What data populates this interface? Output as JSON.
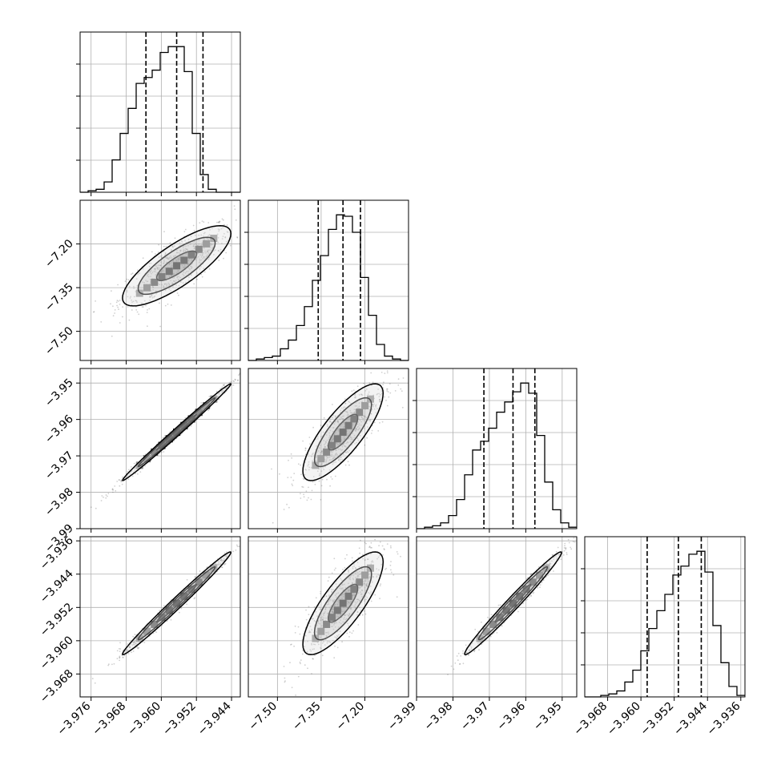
{
  "chart_data": {
    "type": "corner",
    "title": "",
    "grid": true,
    "parameters": [
      {
        "name": "",
        "range": [
          -3.9785,
          -3.942
        ],
        "ticks": [
          -3.976,
          -3.968,
          -3.96,
          -3.952,
          -3.944
        ],
        "tick_labels": [
          "−3.976",
          "−3.968",
          "−3.960",
          "−3.952",
          "−3.944"
        ]
      },
      {
        "name": "",
        "range": [
          -7.6,
          -7.05
        ],
        "ticks": [
          -7.5,
          -7.35,
          -7.2
        ],
        "tick_labels": [
          "−7.50",
          "−7.35",
          "−7.20"
        ]
      },
      {
        "name": "",
        "range": [
          -3.99,
          -3.946
        ],
        "ticks": [
          -3.99,
          -3.98,
          -3.97,
          -3.96,
          -3.95
        ],
        "tick_labels": [
          "−3.99",
          "−3.98",
          "−3.97",
          "−3.96",
          "−3.95"
        ]
      },
      {
        "name": "",
        "range": [
          -3.9735,
          -3.935
        ],
        "ticks": [
          -3.968,
          -3.96,
          -3.952,
          -3.944,
          -3.936
        ],
        "tick_labels": [
          "−3.968",
          "−3.960",
          "−3.952",
          "−3.944",
          "−3.936"
        ]
      }
    ],
    "quantiles": [
      [
        -3.9635,
        -3.9565,
        -3.9505
      ],
      [
        -7.36,
        -7.275,
        -7.215
      ],
      [
        -3.9715,
        -3.9635,
        -3.9575
      ],
      [
        -3.9585,
        -3.951,
        -3.9455
      ]
    ],
    "histograms": [
      {
        "param": 0,
        "bins": 20,
        "counts": [
          0,
          1,
          2,
          7,
          22,
          40,
          57,
          74,
          78,
          83,
          95,
          99,
          99,
          82,
          40,
          12,
          2,
          0,
          0,
          0
        ]
      },
      {
        "param": 1,
        "bins": 20,
        "counts": [
          0,
          1,
          2,
          3,
          8,
          14,
          24,
          37,
          55,
          72,
          90,
          100,
          99,
          88,
          57,
          31,
          11,
          3,
          1,
          0
        ]
      },
      {
        "param": 2,
        "bins": 20,
        "counts": [
          0,
          1,
          2,
          4,
          9,
          20,
          37,
          54,
          60,
          69,
          80,
          87,
          94,
          100,
          93,
          64,
          32,
          13,
          4,
          1
        ]
      },
      {
        "param": 3,
        "bins": 20,
        "counts": [
          0,
          0,
          1,
          2,
          4,
          10,
          18,
          31,
          46,
          58,
          69,
          82,
          88,
          96,
          98,
          84,
          48,
          23,
          7,
          1
        ]
      }
    ],
    "pairs": [
      {
        "x": 0,
        "y": 1,
        "corr": 0.8
      },
      {
        "x": 0,
        "y": 2,
        "corr": 0.995
      },
      {
        "x": 1,
        "y": 2,
        "corr": 0.8
      },
      {
        "x": 0,
        "y": 3,
        "corr": 0.99
      },
      {
        "x": 1,
        "y": 3,
        "corr": 0.8
      },
      {
        "x": 2,
        "y": 3,
        "corr": 0.985
      }
    ]
  }
}
